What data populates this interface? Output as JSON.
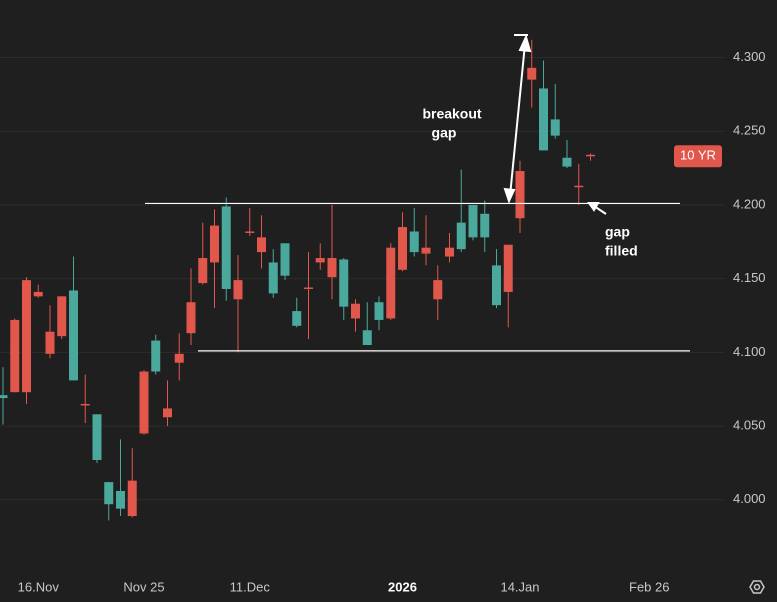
{
  "chart_data": {
    "type": "candlestick",
    "categories": [
      null,
      null,
      null,
      "16.Nov",
      null,
      null,
      null,
      null,
      null,
      null,
      null,
      null,
      "Nov 25",
      null,
      null,
      null,
      null,
      null,
      null,
      null,
      null,
      "11.Dec",
      null,
      null,
      null,
      null,
      null,
      null,
      null,
      null,
      null,
      null,
      null,
      null,
      "2026",
      null,
      null,
      null,
      null,
      null,
      null,
      null,
      null,
      null,
      "14.Jan",
      null,
      null,
      null,
      null,
      null,
      null,
      null,
      null,
      null,
      null,
      "Feb 26",
      null,
      null,
      null,
      null,
      null,
      null
    ],
    "open": [
      4.069,
      4.122,
      4.149,
      4.141,
      4.114,
      4.138,
      4.081,
      4.065,
      4.027,
      3.997,
      3.994,
      4.013,
      4.087,
      4.087,
      4.062,
      4.099,
      4.134,
      4.164,
      4.186,
      4.143,
      4.149,
      4.182,
      4.178,
      4.14,
      4.152,
      4.118,
      4.144,
      4.164,
      4.164,
      4.131,
      4.133,
      4.105,
      4.122,
      4.171,
      4.185,
      4.168,
      4.171,
      4.149,
      4.171,
      4.17,
      4.178,
      4.178,
      4.132,
      4.173,
      4.223,
      4.293,
      4.237,
      4.247,
      4.226,
      4.213,
      4.234,
      null,
      null,
      null,
      null,
      null,
      null,
      null,
      null,
      null,
      null,
      null
    ],
    "high": [
      4.09,
      4.123,
      4.151,
      4.146,
      4.132,
      4.138,
      4.165,
      4.085,
      4.058,
      4.012,
      4.041,
      4.035,
      4.088,
      4.112,
      4.081,
      4.113,
      4.157,
      4.188,
      4.197,
      4.205,
      4.166,
      4.198,
      4.193,
      4.17,
      4.174,
      4.137,
      4.168,
      4.174,
      4.2,
      4.164,
      4.136,
      4.134,
      4.138,
      4.174,
      4.195,
      4.198,
      4.193,
      4.159,
      4.181,
      4.224,
      4.2,
      4.203,
      4.17,
      4.173,
      4.23,
      4.312,
      4.298,
      4.282,
      4.244,
      4.228,
      4.235,
      null,
      null,
      null,
      null,
      null,
      null,
      null,
      null,
      null,
      null,
      null
    ],
    "low": [
      4.051,
      4.073,
      4.065,
      4.137,
      4.096,
      4.109,
      4.081,
      4.052,
      4.025,
      3.986,
      3.989,
      3.988,
      4.044,
      4.085,
      4.05,
      4.081,
      4.105,
      4.146,
      4.13,
      4.135,
      4.1,
      4.179,
      4.157,
      4.137,
      4.149,
      4.117,
      4.109,
      4.156,
      4.136,
      4.122,
      4.114,
      4.105,
      4.115,
      4.122,
      4.155,
      4.165,
      4.159,
      4.122,
      4.161,
      4.168,
      4.176,
      4.168,
      4.13,
      4.117,
      4.181,
      4.266,
      4.237,
      4.245,
      4.225,
      4.2,
      4.23,
      null,
      null,
      null,
      null,
      null,
      null,
      null,
      null,
      null,
      null,
      null
    ],
    "close": [
      4.071,
      4.073,
      4.073,
      4.138,
      4.099,
      4.111,
      4.142,
      4.064,
      4.058,
      4.012,
      4.006,
      3.989,
      4.045,
      4.108,
      4.056,
      4.093,
      4.113,
      4.147,
      4.161,
      4.199,
      4.136,
      4.181,
      4.168,
      4.161,
      4.174,
      4.128,
      4.143,
      4.161,
      4.151,
      4.163,
      4.123,
      4.115,
      4.134,
      4.123,
      4.156,
      4.182,
      4.167,
      4.136,
      4.165,
      4.188,
      4.2,
      4.194,
      4.159,
      4.141,
      4.191,
      4.285,
      4.279,
      4.258,
      4.232,
      4.212,
      4.233,
      null,
      null,
      null,
      null,
      null,
      null,
      null,
      null,
      null,
      null,
      null
    ],
    "up_color": "#4aa99c",
    "down_color": "#e2574c",
    "ylim": [
      3.949,
      4.339
    ],
    "yticks": [
      {
        "value": 4.0,
        "label": "4.000"
      },
      {
        "value": 4.05,
        "label": "4.050"
      },
      {
        "value": 4.1,
        "label": "4.100"
      },
      {
        "value": 4.15,
        "label": "4.150"
      },
      {
        "value": 4.2,
        "label": "4.200"
      },
      {
        "value": 4.25,
        "label": "4.250"
      },
      {
        "value": 4.3,
        "label": "4.300"
      }
    ],
    "grid": true,
    "last_label": "10 YR",
    "hlines": [
      4.201,
      4.101
    ],
    "annotations": [
      {
        "lines": [
          "breakout",
          "gap"
        ]
      },
      {
        "lines": [
          "gap",
          "filled"
        ]
      }
    ]
  }
}
